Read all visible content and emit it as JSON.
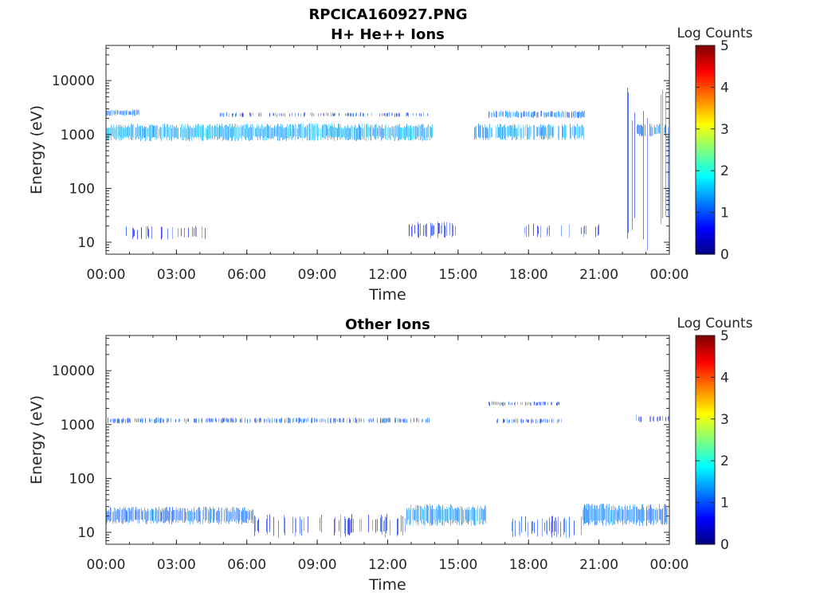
{
  "figure": {
    "title_line1": "RPCICA160927.PNG"
  },
  "chart_data": [
    {
      "type": "heatmap",
      "title": "H+ He++ Ions",
      "xlabel": "Time",
      "ylabel": "Energy (eV)",
      "x_tick_labels": [
        "00:00",
        "03:00",
        "06:00",
        "09:00",
        "12:00",
        "15:00",
        "18:00",
        "21:00",
        "00:00"
      ],
      "x_range_hours": [
        0,
        24
      ],
      "y_scale": "log",
      "y_range": [
        6,
        45000
      ],
      "y_tick_values": [
        10,
        100,
        1000,
        10000
      ],
      "y_tick_labels": [
        "10",
        "100",
        "1000",
        "10000"
      ],
      "colorbar": {
        "label": "Log Counts",
        "range": [
          0,
          5
        ],
        "tick_labels": [
          "0",
          "1",
          "2",
          "3",
          "4",
          "5"
        ],
        "colormap": "jet"
      },
      "bands": [
        {
          "t_start": 0.0,
          "t_end": 13.9,
          "e_low": 750,
          "e_high": 1600,
          "level": 1.2,
          "density": 0.95
        },
        {
          "t_start": 0.0,
          "t_end": 1.4,
          "e_low": 2200,
          "e_high": 2900,
          "level": 0.9,
          "density": 0.8
        },
        {
          "t_start": 4.8,
          "t_end": 13.9,
          "e_low": 2100,
          "e_high": 2600,
          "level": 0.6,
          "density": 0.35
        },
        {
          "t_start": 15.7,
          "t_end": 20.4,
          "e_low": 780,
          "e_high": 1600,
          "level": 1.1,
          "density": 0.7
        },
        {
          "t_start": 16.3,
          "t_end": 20.4,
          "e_low": 2000,
          "e_high": 2800,
          "level": 0.9,
          "density": 0.75
        },
        {
          "t_start": 22.6,
          "t_end": 24.0,
          "e_low": 900,
          "e_high": 1600,
          "level": 0.9,
          "density": 0.5
        },
        {
          "t_start": 22.2,
          "t_end": 24.0,
          "e_low": 7,
          "e_high": 8000,
          "level": 0.5,
          "density": 0.2
        },
        {
          "t_start": 0.7,
          "t_end": 4.4,
          "e_low": 11,
          "e_high": 20,
          "level": 0.4,
          "density": 0.15
        },
        {
          "t_start": 12.9,
          "t_end": 15.0,
          "e_low": 12,
          "e_high": 24,
          "level": 0.4,
          "density": 0.35
        },
        {
          "t_start": 17.8,
          "t_end": 21.0,
          "e_low": 12,
          "e_high": 22,
          "level": 0.4,
          "density": 0.2
        }
      ]
    },
    {
      "type": "heatmap",
      "title": "Other Ions",
      "xlabel": "Time",
      "ylabel": "Energy (eV)",
      "x_tick_labels": [
        "00:00",
        "03:00",
        "06:00",
        "09:00",
        "12:00",
        "15:00",
        "18:00",
        "21:00",
        "00:00"
      ],
      "x_range_hours": [
        0,
        24
      ],
      "y_scale": "log",
      "y_range": [
        6,
        45000
      ],
      "y_tick_values": [
        10,
        100,
        1000,
        10000
      ],
      "y_tick_labels": [
        "10",
        "100",
        "1000",
        "10000"
      ],
      "colorbar": {
        "label": "Log Counts",
        "range": [
          0,
          5
        ],
        "tick_labels": [
          "0",
          "1",
          "2",
          "3",
          "4",
          "5"
        ],
        "colormap": "jet"
      },
      "bands": [
        {
          "t_start": 0.0,
          "t_end": 13.8,
          "e_low": 1050,
          "e_high": 1350,
          "level": 0.7,
          "density": 0.5
        },
        {
          "t_start": 16.4,
          "t_end": 19.4,
          "e_low": 1050,
          "e_high": 1300,
          "level": 0.6,
          "density": 0.3
        },
        {
          "t_start": 16.3,
          "t_end": 19.3,
          "e_low": 2200,
          "e_high": 2700,
          "level": 0.6,
          "density": 0.4
        },
        {
          "t_start": 22.6,
          "t_end": 24.0,
          "e_low": 1100,
          "e_high": 1500,
          "level": 0.6,
          "density": 0.5
        },
        {
          "t_start": 0.0,
          "t_end": 6.3,
          "e_low": 14,
          "e_high": 30,
          "level": 0.9,
          "density": 0.85
        },
        {
          "t_start": 6.3,
          "t_end": 12.8,
          "e_low": 8,
          "e_high": 22,
          "level": 0.4,
          "density": 0.3
        },
        {
          "t_start": 12.8,
          "t_end": 16.2,
          "e_low": 13,
          "e_high": 34,
          "level": 1.1,
          "density": 0.95
        },
        {
          "t_start": 17.2,
          "t_end": 20.3,
          "e_low": 8,
          "e_high": 20,
          "level": 0.5,
          "density": 0.35
        },
        {
          "t_start": 20.3,
          "t_end": 24.0,
          "e_low": 13,
          "e_high": 34,
          "level": 1.0,
          "density": 0.9
        }
      ]
    }
  ]
}
